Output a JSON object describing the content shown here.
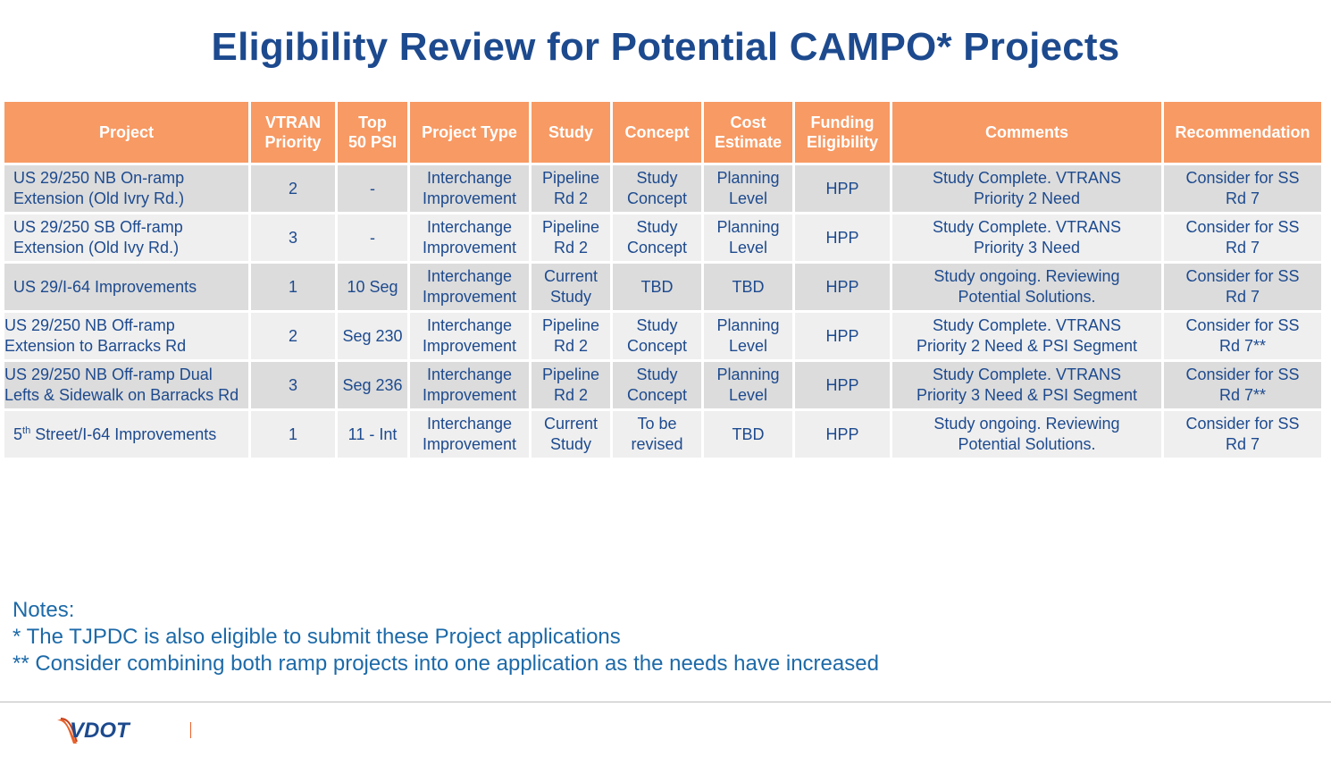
{
  "title": "Eligibility Review for Potential CAMPO* Projects",
  "colors": {
    "title": "#1d4a8e",
    "header_bg": "#f79a64",
    "row_dark": "#dcdcdc",
    "row_light": "#efefef",
    "notes": "#1d6aa8",
    "logo_orange": "#e8622a"
  },
  "table": {
    "headers": {
      "project": "Project",
      "vtran": [
        "VTRAN",
        "Priority"
      ],
      "top50": [
        "Top",
        "50 PSI"
      ],
      "type": "Project Type",
      "study": "Study",
      "concept": "Concept",
      "cost": [
        "Cost",
        "Estimate"
      ],
      "funding": [
        "Funding",
        "Eligibility"
      ],
      "comments": "Comments",
      "recommendation": "Recommendation"
    },
    "rows": [
      {
        "project": [
          "US 29/250 NB On-ramp",
          "Extension (Old Ivry Rd.)"
        ],
        "vtran": "2",
        "top50": "-",
        "type": [
          "Interchange",
          "Improvement"
        ],
        "study": [
          "Pipeline",
          "Rd 2"
        ],
        "concept": [
          "Study",
          "Concept"
        ],
        "cost": [
          "Planning",
          "Level"
        ],
        "funding": "HPP",
        "comments": [
          "Study Complete. VTRANS",
          "Priority 2 Need"
        ],
        "recommendation": [
          "Consider for SS",
          "Rd 7"
        ]
      },
      {
        "project": [
          "US 29/250 SB Off-ramp",
          "Extension (Old Ivy Rd.)"
        ],
        "vtran": "3",
        "top50": "-",
        "type": [
          "Interchange",
          "Improvement"
        ],
        "study": [
          "Pipeline",
          "Rd 2"
        ],
        "concept": [
          "Study",
          "Concept"
        ],
        "cost": [
          "Planning",
          "Level"
        ],
        "funding": "HPP",
        "comments": [
          "Study Complete.  VTRANS",
          "Priority 3 Need"
        ],
        "recommendation": [
          "Consider for SS",
          "Rd 7"
        ]
      },
      {
        "project": [
          "US 29/I-64 Improvements"
        ],
        "vtran": "1",
        "top50": "10 Seg",
        "type": [
          "Interchange",
          "Improvement"
        ],
        "study": [
          "Current",
          "Study"
        ],
        "concept": [
          "TBD"
        ],
        "cost": [
          "TBD"
        ],
        "funding": "HPP",
        "comments": [
          "Study ongoing. Reviewing",
          "Potential Solutions."
        ],
        "recommendation": [
          "Consider for SS",
          "Rd 7"
        ]
      },
      {
        "project": [
          "US 29/250 NB Off-ramp",
          "Extension to Barracks Rd"
        ],
        "vtran": "2",
        "top50": "Seg 230",
        "type": [
          "Interchange",
          "Improvement"
        ],
        "study": [
          "Pipeline",
          "Rd 2"
        ],
        "concept": [
          "Study",
          "Concept"
        ],
        "cost": [
          "Planning",
          "Level"
        ],
        "funding": "HPP",
        "comments": [
          "Study Complete.  VTRANS",
          "Priority 2 Need & PSI Segment"
        ],
        "recommendation": [
          "Consider for SS",
          "Rd 7**"
        ]
      },
      {
        "project": [
          "US 29/250 NB Off-ramp Dual",
          "Lefts & Sidewalk on Barracks Rd"
        ],
        "vtran": "3",
        "top50": "Seg 236",
        "type": [
          "Interchange",
          "Improvement"
        ],
        "study": [
          "Pipeline",
          "Rd 2"
        ],
        "concept": [
          "Study",
          "Concept"
        ],
        "cost": [
          "Planning",
          "Level"
        ],
        "funding": "HPP",
        "comments": [
          "Study Complete.  VTRANS",
          "Priority 3 Need & PSI Segment"
        ],
        "recommendation": [
          "Consider for SS",
          "Rd 7**"
        ]
      },
      {
        "project_prefix": "5",
        "project_sup": "th",
        "project_rest": " Street/I-64 Improvements",
        "vtran": "1",
        "top50": "11 - Int",
        "type": [
          "Interchange",
          "Improvement"
        ],
        "study": [
          "Current",
          "Study"
        ],
        "concept": [
          "To be",
          "revised"
        ],
        "cost": [
          "TBD"
        ],
        "funding": "HPP",
        "comments": [
          "Study ongoing. Reviewing",
          "Potential Solutions."
        ],
        "recommendation": [
          "Consider for SS",
          "Rd 7"
        ]
      }
    ]
  },
  "notes": {
    "heading": "Notes:",
    "lines": [
      "*  The TJPDC is also eligible to submit these Project applications",
      "** Consider combining both ramp projects into one application as the needs have increased"
    ]
  },
  "logo": {
    "text": "VDOT",
    "icon": "vdot-swoosh-logo"
  }
}
